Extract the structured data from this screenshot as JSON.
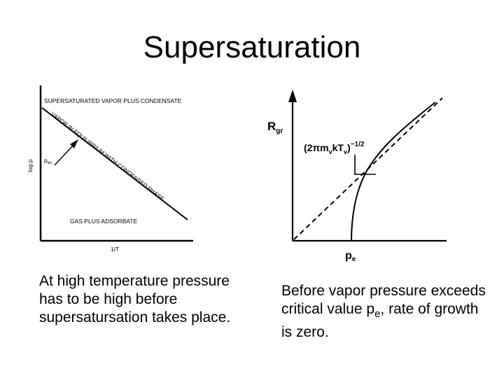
{
  "slide": {
    "title": "Supersaturation"
  },
  "left_diagram": {
    "region_top": "SUPERSATURATED VAPOR PLUS CONDENSATE",
    "equilibrium_line": "VAPOR IN EQUILIBRIUM WITH CONDENSED PHASE",
    "region_bottom": "GAS PLUS ADSORBATE",
    "y_axis": "log p",
    "x_axis": "1/T",
    "arrow_label_main": "p",
    "arrow_label_sub": "ec"
  },
  "right_diagram": {
    "y_axis_main": "R",
    "y_axis_sub": "gr",
    "slope_label": "(2πm",
    "slope_v1": "v",
    "slope_mid": "kT",
    "slope_v2": "v",
    "slope_close": ")",
    "slope_exp": "−1/2",
    "x_marker_main": "p",
    "x_marker_sub": "e"
  },
  "captions": {
    "left": "At high temperature pressure has to be high before supersatursation takes place.",
    "right_main": "Before vapor pressure exceeds critical value p",
    "right_sub": "e",
    "right_tail": ", rate of growth is zero."
  }
}
